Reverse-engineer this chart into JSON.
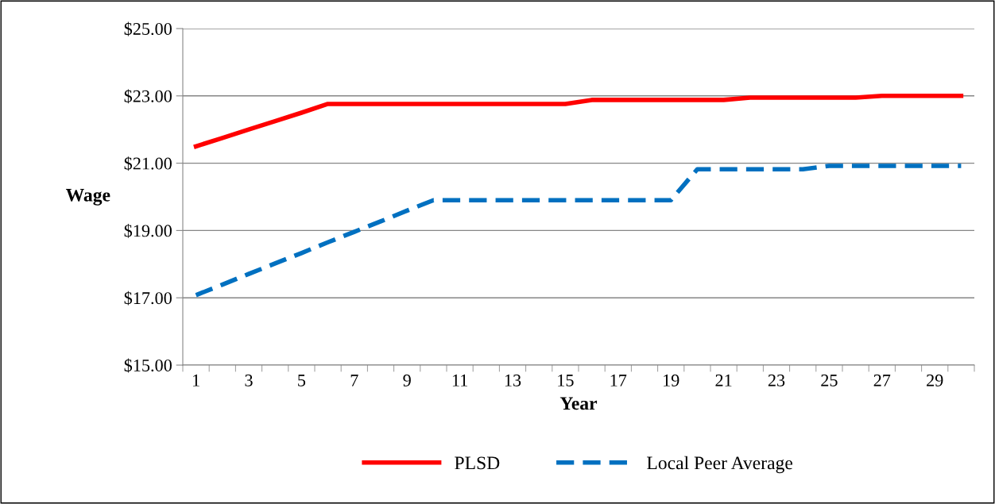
{
  "chart_data": {
    "type": "line",
    "xlabel": "Year",
    "ylabel": "Wage",
    "categories": [
      "1",
      null,
      "3",
      null,
      "5",
      null,
      "7",
      null,
      "9",
      null,
      "11",
      null,
      "13",
      null,
      "15",
      null,
      "17",
      null,
      "19",
      null,
      "21",
      null,
      "23",
      null,
      "25",
      null,
      "27",
      null,
      "29",
      null
    ],
    "series": [
      {
        "name": "PLSD",
        "color": "#ff0000",
        "line_style": "solid",
        "values": [
          21.5,
          21.75,
          22.0,
          22.25,
          22.5,
          22.76,
          22.76,
          22.76,
          22.76,
          22.76,
          22.76,
          22.76,
          22.76,
          22.76,
          22.76,
          22.88,
          22.88,
          22.88,
          22.88,
          22.88,
          22.88,
          22.95,
          22.95,
          22.95,
          22.95,
          22.95,
          23.0,
          23.0,
          23.0,
          23.0
        ]
      },
      {
        "name": "Local Peer Average",
        "color": "#0070c0",
        "line_style": "dashed",
        "values": [
          17.08,
          17.39,
          17.71,
          18.02,
          18.33,
          18.65,
          18.96,
          19.27,
          19.59,
          19.9,
          19.9,
          19.9,
          19.9,
          19.9,
          19.9,
          19.9,
          19.9,
          19.9,
          19.9,
          20.82,
          20.82,
          20.82,
          20.82,
          20.82,
          20.92,
          20.92,
          20.92,
          20.92,
          20.92,
          20.92
        ]
      }
    ],
    "ylim": [
      15,
      25
    ],
    "yticks": [
      {
        "value": 15,
        "label": "$15.00"
      },
      {
        "value": 17,
        "label": "$17.00"
      },
      {
        "value": 19,
        "label": "$19.00"
      },
      {
        "value": 21,
        "label": "$21.00"
      },
      {
        "value": 23,
        "label": "$23.00"
      },
      {
        "value": 25,
        "label": "$25.00"
      }
    ],
    "grid": "y",
    "legend": "bottom",
    "marker": "none"
  }
}
